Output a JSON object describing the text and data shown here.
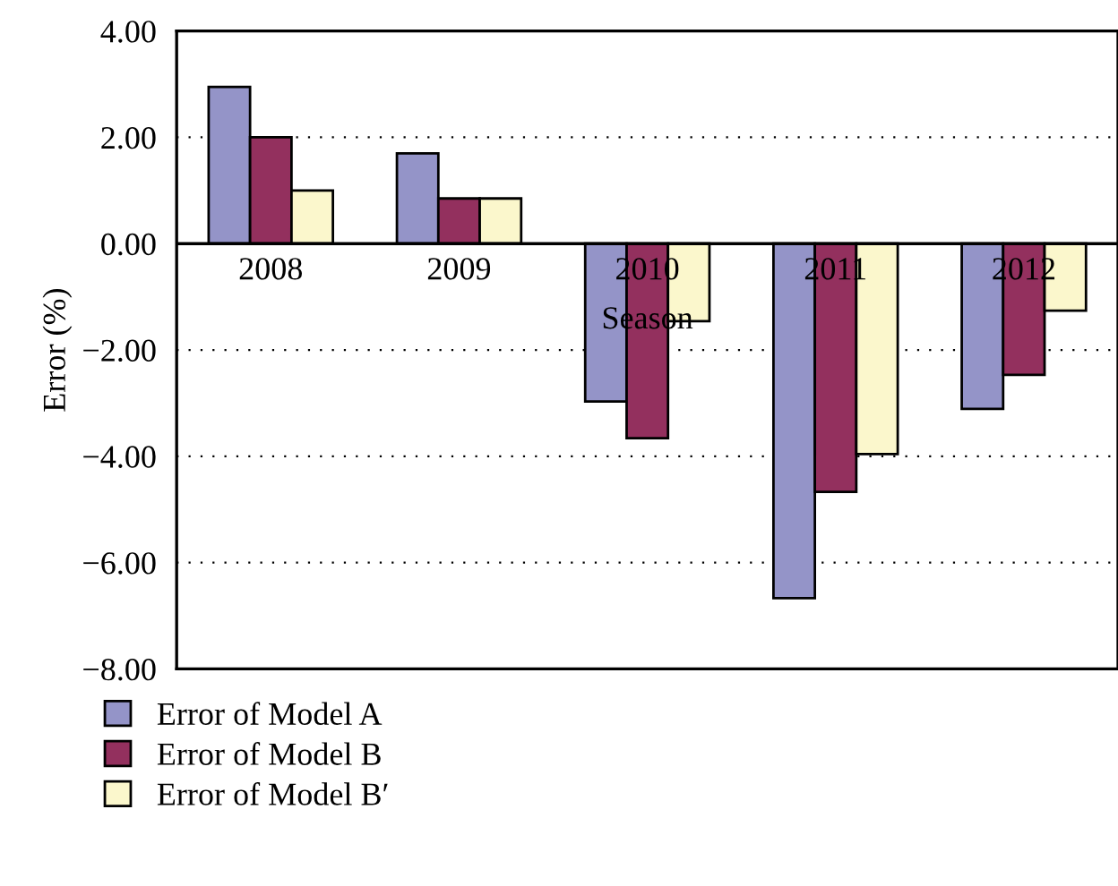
{
  "chart_data": {
    "type": "bar",
    "xlabel": "Season",
    "ylabel": "Error (%)",
    "categories": [
      "2008",
      "2009",
      "2010",
      "2011",
      "2012"
    ],
    "series": [
      {
        "name": "Error of Model A",
        "color": "#9494c8",
        "values": [
          2.95,
          1.7,
          -2.97,
          -6.67,
          -3.11
        ]
      },
      {
        "name": "Error of Model B",
        "color": "#93305e",
        "values": [
          2.0,
          0.85,
          -3.66,
          -4.67,
          -2.47
        ]
      },
      {
        "name": "Error of Model B′",
        "color": "#fbf7cc",
        "values": [
          1.0,
          0.85,
          -1.46,
          -3.96,
          -1.26
        ]
      }
    ],
    "ylim": [
      -8,
      4
    ],
    "yticks": [
      {
        "value": -8,
        "label": "−8.00"
      },
      {
        "value": -6,
        "label": "−6.00"
      },
      {
        "value": -4,
        "label": "−4.00"
      },
      {
        "value": -2,
        "label": "−2.00"
      },
      {
        "value": 0,
        "label": "0.00"
      },
      {
        "value": 2,
        "label": "2.00"
      },
      {
        "value": 4,
        "label": "4.00"
      }
    ],
    "grid": "y",
    "legend": "bottom left"
  }
}
